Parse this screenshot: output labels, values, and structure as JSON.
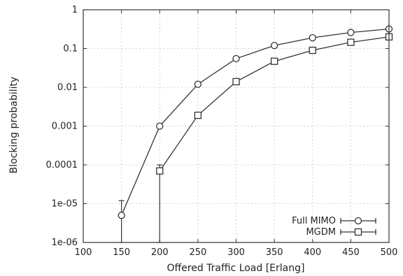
{
  "chart_data": {
    "type": "line",
    "title": "",
    "xlabel": "Offered Traffic Load [Erlang]",
    "ylabel": "Blocking probability",
    "x_ticks": [
      100,
      150,
      200,
      250,
      300,
      350,
      400,
      450,
      500
    ],
    "y_ticks": [
      1e-06,
      1e-05,
      0.0001,
      0.001,
      0.01,
      0.1,
      1
    ],
    "y_tick_labels": [
      "1e-06",
      "1e-05",
      "0.0001",
      "0.001",
      "0.01",
      "0.1",
      "1"
    ],
    "xlim": [
      100,
      500
    ],
    "ylim": [
      1e-06,
      1
    ],
    "y_scale": "log",
    "grid": true,
    "legend_position": "bottom-right",
    "series": [
      {
        "name": "Full MIMO",
        "marker": "circle",
        "color": "#333333",
        "x": [
          150,
          200,
          250,
          300,
          350,
          400,
          450,
          500
        ],
        "y": [
          5e-06,
          0.001,
          0.012,
          0.055,
          0.12,
          0.19,
          0.26,
          0.32
        ],
        "error_low": [
          1e-07,
          0.0009,
          0.011,
          0.052,
          0.115,
          0.185,
          0.25,
          0.31
        ],
        "error_high": [
          1.2e-05,
          0.0011,
          0.013,
          0.058,
          0.125,
          0.195,
          0.27,
          0.33
        ]
      },
      {
        "name": "MGDM",
        "marker": "square",
        "color": "#333333",
        "x": [
          200,
          250,
          300,
          350,
          400,
          450,
          500
        ],
        "y": [
          7e-05,
          0.0019,
          0.014,
          0.047,
          0.09,
          0.145,
          0.2
        ],
        "error_low": [
          1e-07,
          0.0017,
          0.013,
          0.045,
          0.087,
          0.14,
          0.195
        ],
        "error_high": [
          0.0001,
          0.0021,
          0.015,
          0.049,
          0.093,
          0.15,
          0.205
        ]
      }
    ]
  }
}
